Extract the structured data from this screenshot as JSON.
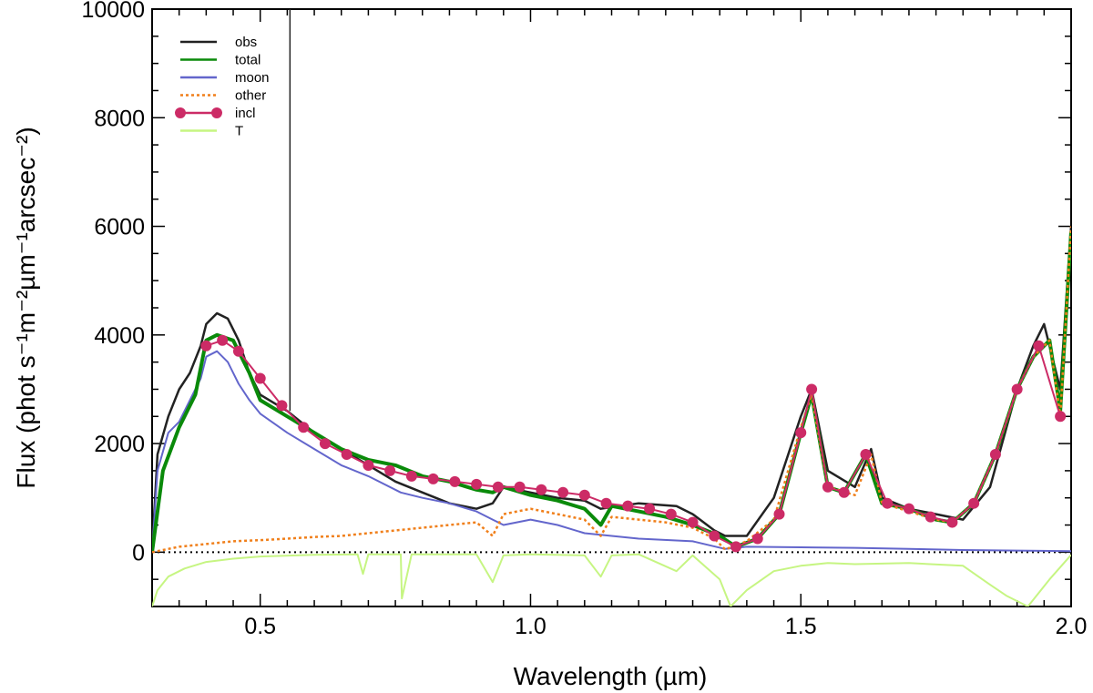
{
  "chart_data": {
    "type": "line",
    "title": "",
    "xlabel": "Wavelength (µm)",
    "ylabel": "Flux (phot s⁻¹m⁻²µm⁻¹arcsec⁻²)",
    "xlim": [
      0.3,
      2.0
    ],
    "ylim": [
      -1000,
      10000
    ],
    "xticks": [
      0.5,
      1.0,
      1.5,
      2.0
    ],
    "xtick_labels": [
      "0.5",
      "1.0",
      "1.5",
      "2.0"
    ],
    "yticks": [
      0,
      2000,
      4000,
      6000,
      8000,
      10000
    ],
    "ytick_labels": [
      "0",
      "2000",
      "4000",
      "6000",
      "8000",
      "10000"
    ],
    "zero_line": 0,
    "legend_position": "top-left",
    "series": [
      {
        "name": "obs",
        "color": "#222222",
        "style": "solid",
        "x": [
          0.3,
          0.31,
          0.33,
          0.35,
          0.37,
          0.39,
          0.4,
          0.42,
          0.44,
          0.46,
          0.48,
          0.5,
          0.55,
          0.6,
          0.65,
          0.7,
          0.75,
          0.8,
          0.85,
          0.9,
          0.93,
          0.95,
          1.0,
          1.05,
          1.1,
          1.13,
          1.2,
          1.27,
          1.3,
          1.34,
          1.36,
          1.4,
          1.45,
          1.5,
          1.52,
          1.55,
          1.6,
          1.63,
          1.65,
          1.7,
          1.75,
          1.8,
          1.85,
          1.9,
          1.93,
          1.95,
          1.98,
          2.0
        ],
        "values": [
          0,
          1800,
          2500,
          3000,
          3300,
          3800,
          4200,
          4400,
          4300,
          3900,
          3300,
          2900,
          2600,
          2200,
          1900,
          1600,
          1300,
          1100,
          900,
          800,
          900,
          1200,
          1100,
          1000,
          950,
          800,
          900,
          850,
          700,
          400,
          300,
          300,
          1000,
          2500,
          3000,
          1500,
          1200,
          1900,
          1000,
          800,
          700,
          600,
          1200,
          3000,
          3800,
          4200,
          3000,
          6000
        ]
      },
      {
        "name": "total",
        "color": "#0a8a0a",
        "style": "solid",
        "x": [
          0.3,
          0.32,
          0.35,
          0.38,
          0.4,
          0.42,
          0.45,
          0.48,
          0.5,
          0.55,
          0.6,
          0.65,
          0.7,
          0.75,
          0.8,
          0.85,
          0.9,
          0.93,
          0.95,
          1.0,
          1.05,
          1.1,
          1.13,
          1.15,
          1.2,
          1.25,
          1.3,
          1.35,
          1.38,
          1.42,
          1.46,
          1.5,
          1.52,
          1.55,
          1.58,
          1.62,
          1.65,
          1.7,
          1.75,
          1.78,
          1.82,
          1.86,
          1.9,
          1.93,
          1.96,
          1.98,
          2.0
        ],
        "values": [
          0,
          1500,
          2300,
          2900,
          3900,
          4000,
          3900,
          3300,
          2800,
          2500,
          2200,
          1900,
          1700,
          1600,
          1400,
          1300,
          1150,
          1100,
          1200,
          1050,
          950,
          800,
          500,
          850,
          750,
          650,
          500,
          300,
          100,
          250,
          700,
          2200,
          2900,
          1200,
          1100,
          1800,
          900,
          800,
          600,
          550,
          900,
          1800,
          3000,
          3600,
          3900,
          2600,
          5900
        ]
      },
      {
        "name": "moon",
        "color": "#6366cc",
        "style": "solid",
        "x": [
          0.3,
          0.31,
          0.33,
          0.35,
          0.37,
          0.39,
          0.4,
          0.42,
          0.44,
          0.46,
          0.48,
          0.5,
          0.55,
          0.6,
          0.65,
          0.7,
          0.76,
          0.8,
          0.85,
          0.9,
          0.93,
          0.95,
          1.0,
          1.05,
          1.1,
          1.15,
          1.2,
          1.3,
          1.36,
          1.4,
          1.5,
          1.6,
          1.7,
          1.8,
          1.9,
          2.0
        ],
        "values": [
          0,
          1500,
          2200,
          2400,
          2800,
          3200,
          3600,
          3700,
          3500,
          3100,
          2800,
          2550,
          2200,
          1900,
          1600,
          1400,
          1100,
          1000,
          900,
          750,
          600,
          500,
          600,
          500,
          350,
          300,
          250,
          200,
          60,
          100,
          90,
          80,
          60,
          40,
          30,
          20
        ]
      },
      {
        "name": "other",
        "color": "#f07f1a",
        "style": "dotted",
        "x": [
          0.3,
          0.35,
          0.4,
          0.45,
          0.5,
          0.55,
          0.6,
          0.65,
          0.7,
          0.75,
          0.8,
          0.85,
          0.9,
          0.93,
          0.95,
          1.0,
          1.05,
          1.1,
          1.13,
          1.15,
          1.2,
          1.25,
          1.3,
          1.34,
          1.36,
          1.4,
          1.45,
          1.5,
          1.52,
          1.55,
          1.6,
          1.63,
          1.65,
          1.7,
          1.75,
          1.78,
          1.82,
          1.86,
          1.9,
          1.93,
          1.96,
          1.98,
          2.0
        ],
        "values": [
          0,
          100,
          150,
          200,
          220,
          250,
          280,
          300,
          350,
          400,
          450,
          500,
          550,
          300,
          700,
          800,
          700,
          600,
          300,
          650,
          600,
          550,
          450,
          250,
          50,
          200,
          600,
          2300,
          2900,
          1200,
          1050,
          1800,
          900,
          750,
          600,
          550,
          900,
          1800,
          3000,
          3600,
          3900,
          2500,
          6000
        ]
      },
      {
        "name": "incl",
        "color": "#cc2b66",
        "style": "solid-markers",
        "x": [
          0.4,
          0.43,
          0.46,
          0.5,
          0.54,
          0.58,
          0.62,
          0.66,
          0.7,
          0.74,
          0.78,
          0.82,
          0.86,
          0.9,
          0.94,
          0.98,
          1.02,
          1.06,
          1.1,
          1.14,
          1.18,
          1.22,
          1.26,
          1.3,
          1.34,
          1.38,
          1.42,
          1.46,
          1.5,
          1.52,
          1.55,
          1.58,
          1.62,
          1.66,
          1.7,
          1.74,
          1.78,
          1.82,
          1.86,
          1.9,
          1.94,
          1.98
        ],
        "values": [
          3800,
          3900,
          3700,
          3200,
          2700,
          2300,
          2000,
          1800,
          1600,
          1500,
          1400,
          1350,
          1300,
          1250,
          1200,
          1200,
          1150,
          1100,
          1050,
          900,
          850,
          800,
          700,
          550,
          300,
          100,
          250,
          700,
          2200,
          3000,
          1200,
          1100,
          1800,
          900,
          800,
          650,
          550,
          900,
          1800,
          3000,
          3800,
          2500
        ]
      },
      {
        "name": "T",
        "color": "#c6f582",
        "style": "solid",
        "x": [
          0.3,
          0.31,
          0.33,
          0.36,
          0.4,
          0.45,
          0.5,
          0.6,
          0.68,
          0.69,
          0.7,
          0.76,
          0.762,
          0.78,
          0.9,
          0.93,
          0.95,
          1.0,
          1.1,
          1.13,
          1.15,
          1.2,
          1.27,
          1.3,
          1.35,
          1.37,
          1.4,
          1.45,
          1.5,
          1.55,
          1.6,
          1.7,
          1.8,
          1.85,
          1.88,
          1.92,
          1.96,
          2.0
        ],
        "values": [
          -1000,
          -700,
          -450,
          -300,
          -180,
          -120,
          -80,
          -50,
          -40,
          -400,
          -40,
          -40,
          -850,
          -40,
          -40,
          -550,
          -60,
          -40,
          -60,
          -450,
          -60,
          -40,
          -350,
          -60,
          -500,
          -1000,
          -700,
          -350,
          -250,
          -200,
          -220,
          -200,
          -250,
          -600,
          -800,
          -1000,
          -500,
          -50
        ]
      }
    ]
  }
}
